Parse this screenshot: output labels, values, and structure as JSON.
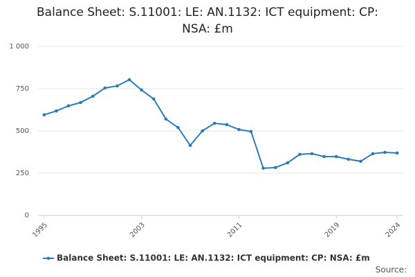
{
  "chart_data": {
    "type": "line",
    "title": "Balance Sheet: S.11001: LE: AN.1132: ICT equipment: CP: NSA: £m",
    "x": [
      1995,
      1996,
      1997,
      1998,
      1999,
      2000,
      2001,
      2002,
      2003,
      2004,
      2005,
      2006,
      2007,
      2008,
      2009,
      2010,
      2011,
      2012,
      2013,
      2014,
      2015,
      2016,
      2017,
      2018,
      2019,
      2020,
      2021,
      2022,
      2023,
      2024
    ],
    "series": [
      {
        "name": "Balance Sheet: S.11001: LE: AN.1132: ICT equipment: CP: NSA: £m",
        "color": "#2b7bb9",
        "values": [
          595,
          618,
          648,
          668,
          705,
          754,
          766,
          803,
          742,
          689,
          570,
          520,
          414,
          500,
          545,
          537,
          508,
          496,
          279,
          283,
          311,
          361,
          365,
          348,
          348,
          332,
          320,
          365,
          373,
          369
        ]
      }
    ],
    "xlim": [
      1994.5,
      2024.5
    ],
    "xticks": [
      1995,
      2003,
      2011,
      2019,
      2024
    ],
    "ylim": [
      0,
      1000
    ],
    "yticks": [
      0,
      250,
      500,
      750,
      {
        "value": 1000,
        "label": "1 000"
      }
    ],
    "grid": true,
    "source": "Source:"
  }
}
